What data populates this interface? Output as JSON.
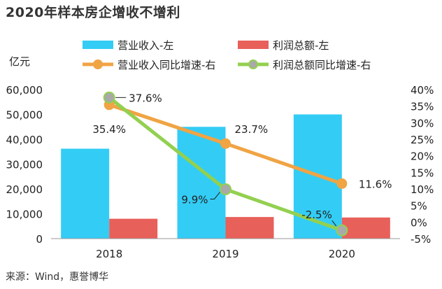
{
  "title": "2020年样本房企增收不增利",
  "source": "来源：Wind，惠誉博华",
  "colors": {
    "revenue_bar": "#33ccf5",
    "profit_bar": "#e8605a",
    "revenue_growth": "#f0a444",
    "profit_growth": "#93d050"
  },
  "chart_data": {
    "type": "bar",
    "categories": [
      "2018",
      "2019",
      "2020"
    ],
    "ylabel": "亿元",
    "ylim": [
      0,
      60000
    ],
    "yticks": [
      "0",
      "10,000",
      "20,000",
      "30,000",
      "40,000",
      "50,000",
      "60,000"
    ],
    "y2lim": [
      -5,
      40
    ],
    "y2ticks": [
      "-5%",
      "0%",
      "5%",
      "10%",
      "15%",
      "20%",
      "25%",
      "30%",
      "35%",
      "40%"
    ],
    "grid": false,
    "legend_position": "top",
    "series": [
      {
        "name": "营业收入-左",
        "type": "bar",
        "axis": "left",
        "values": [
          36200,
          45000,
          50000
        ]
      },
      {
        "name": "利润总额-左",
        "type": "bar",
        "axis": "left",
        "values": [
          8000,
          8700,
          8500
        ]
      },
      {
        "name": "营业收入同比增速-右",
        "type": "line",
        "axis": "right",
        "values": [
          35.4,
          23.7,
          11.6
        ],
        "labels": [
          "35.4%",
          "23.7%",
          "11.6%"
        ]
      },
      {
        "name": "利润总额同比增速-右",
        "type": "line",
        "axis": "right",
        "values": [
          37.6,
          9.9,
          -2.5
        ],
        "labels": [
          "37.6%",
          "9.9%",
          "-2.5%"
        ]
      }
    ]
  }
}
